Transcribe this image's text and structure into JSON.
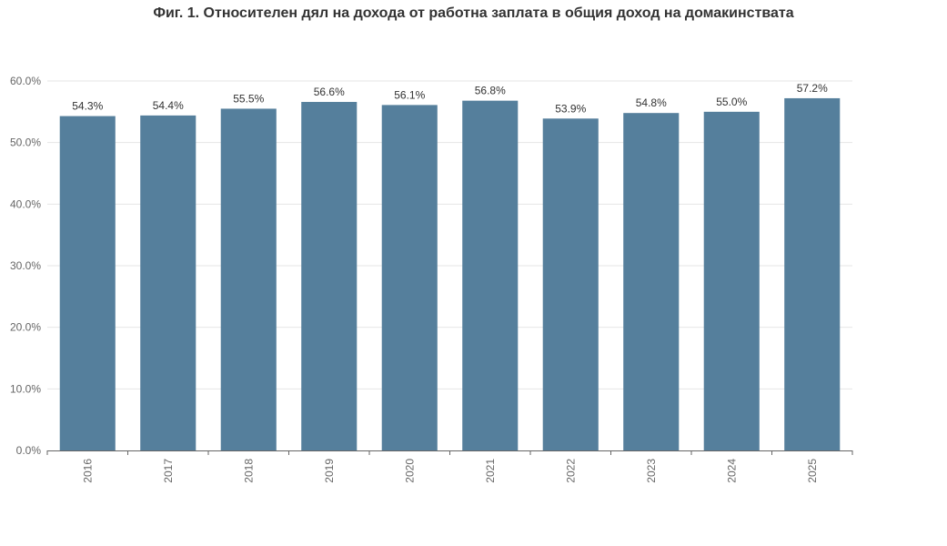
{
  "chart_data": {
    "type": "bar",
    "title": "Фиг. 1. Относителен дял на дохода от работна заплата в общия доход на домакинствата",
    "categories": [
      "2016",
      "2017",
      "2018",
      "2019",
      "2020",
      "2021",
      "2022",
      "2023",
      "2024",
      "2025"
    ],
    "values": [
      54.3,
      54.4,
      55.5,
      56.6,
      56.1,
      56.8,
      53.9,
      54.8,
      55.0,
      57.2
    ],
    "data_labels": [
      "54.3%",
      "54.4%",
      "55.5%",
      "56.6%",
      "56.1%",
      "56.8%",
      "53.9%",
      "54.8%",
      "55.0%",
      "57.2%"
    ],
    "y_ticks": [
      "0.0%",
      "10.0%",
      "20.0%",
      "30.0%",
      "40.0%",
      "50.0%",
      "60.0%"
    ],
    "ylim": [
      0,
      60
    ],
    "grid": true,
    "legend": "none",
    "colors": {
      "bar": "#557f9c",
      "grid": "#e6e6e6",
      "axis": "#666666"
    }
  }
}
